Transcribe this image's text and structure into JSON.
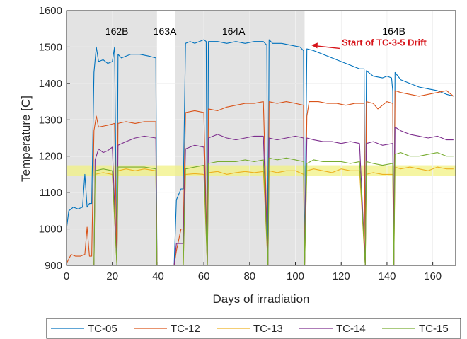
{
  "chart_data": {
    "type": "line",
    "xlabel": "Days of irradiation",
    "ylabel": "Temperature [C]",
    "xlim": [
      0,
      170
    ],
    "ylim": [
      900,
      1600
    ],
    "xticks": [
      0,
      20,
      40,
      60,
      80,
      100,
      120,
      140,
      160
    ],
    "yticks": [
      900,
      1000,
      1100,
      1200,
      1300,
      1400,
      1500,
      1600
    ],
    "grid": true,
    "legend_position": "bottom",
    "shaded_regions": [
      {
        "label": "162B",
        "x0": 0,
        "x1": 39.5,
        "label_x": 22
      },
      {
        "label": "163A",
        "x0": 39.5,
        "x1": 47.5,
        "label_x": 43,
        "shaded": false
      },
      {
        "label": "164A",
        "x0": 47.5,
        "x1": 104,
        "label_x": 73
      },
      {
        "label": "164B",
        "x0": 104,
        "x1": 170,
        "label_x": 143,
        "shaded": false
      }
    ],
    "highlight_band": {
      "y0": 1145,
      "y1": 1175,
      "color": "#f2f283"
    },
    "annotation": {
      "text": "Start of TC-3-5 Drift",
      "x": 106,
      "y": 1500,
      "color": "#d7141a"
    },
    "series": [
      {
        "name": "TC-05",
        "color": "#0072bd",
        "points": [
          [
            0,
            1000
          ],
          [
            1,
            1050
          ],
          [
            3,
            1060
          ],
          [
            5,
            1055
          ],
          [
            7,
            1060
          ],
          [
            8,
            1150
          ],
          [
            9,
            1060
          ],
          [
            10,
            1070
          ],
          [
            11,
            1070
          ],
          [
            12,
            1430
          ],
          [
            13,
            1500
          ],
          [
            14,
            1460
          ],
          [
            16,
            1465
          ],
          [
            18,
            1455
          ],
          [
            20,
            1460
          ],
          [
            21,
            1500
          ],
          [
            22,
            900
          ],
          [
            22.5,
            1480
          ],
          [
            24,
            1470
          ],
          [
            28,
            1480
          ],
          [
            32,
            1480
          ],
          [
            36,
            1475
          ],
          [
            39,
            1470
          ],
          [
            39.5,
            900
          ],
          [
            40,
            900
          ],
          [
            47,
            900
          ],
          [
            48,
            1080
          ],
          [
            50,
            1110
          ],
          [
            51,
            1110
          ],
          [
            52,
            1510
          ],
          [
            54,
            1515
          ],
          [
            56,
            1510
          ],
          [
            58,
            1515
          ],
          [
            60,
            1520
          ],
          [
            61,
            1515
          ],
          [
            61.5,
            900
          ],
          [
            62,
            1515
          ],
          [
            66,
            1515
          ],
          [
            70,
            1510
          ],
          [
            74,
            1515
          ],
          [
            78,
            1510
          ],
          [
            82,
            1515
          ],
          [
            86,
            1515
          ],
          [
            87.5,
            1505
          ],
          [
            88,
            900
          ],
          [
            88.5,
            1520
          ],
          [
            90,
            1510
          ],
          [
            94,
            1510
          ],
          [
            98,
            1505
          ],
          [
            102,
            1500
          ],
          [
            103.5,
            1490
          ],
          [
            104,
            900
          ],
          [
            105,
            1495
          ],
          [
            108,
            1490
          ],
          [
            112,
            1480
          ],
          [
            116,
            1470
          ],
          [
            120,
            1460
          ],
          [
            124,
            1450
          ],
          [
            128,
            1440
          ],
          [
            130,
            1440
          ],
          [
            130.5,
            900
          ],
          [
            131,
            1435
          ],
          [
            134,
            1420
          ],
          [
            138,
            1415
          ],
          [
            140,
            1420
          ],
          [
            142,
            1415
          ],
          [
            142.5,
            1380
          ],
          [
            143,
            900
          ],
          [
            143.5,
            1430
          ],
          [
            146,
            1410
          ],
          [
            150,
            1400
          ],
          [
            154,
            1390
          ],
          [
            158,
            1385
          ],
          [
            162,
            1380
          ],
          [
            166,
            1370
          ],
          [
            169,
            1365
          ]
        ]
      },
      {
        "name": "TC-12",
        "color": "#d95319",
        "points": [
          [
            0,
            905
          ],
          [
            2,
            930
          ],
          [
            4,
            925
          ],
          [
            6,
            925
          ],
          [
            8,
            930
          ],
          [
            9,
            1005
          ],
          [
            10,
            925
          ],
          [
            11,
            925
          ],
          [
            12,
            1270
          ],
          [
            13,
            1310
          ],
          [
            14,
            1280
          ],
          [
            18,
            1285
          ],
          [
            21,
            1290
          ],
          [
            22,
            900
          ],
          [
            22.5,
            1290
          ],
          [
            26,
            1295
          ],
          [
            30,
            1290
          ],
          [
            34,
            1295
          ],
          [
            39,
            1295
          ],
          [
            39.5,
            900
          ],
          [
            40,
            900
          ],
          [
            47,
            900
          ],
          [
            48,
            940
          ],
          [
            50,
            1000
          ],
          [
            51,
            1000
          ],
          [
            52,
            1320
          ],
          [
            56,
            1325
          ],
          [
            60,
            1320
          ],
          [
            61.5,
            900
          ],
          [
            62,
            1330
          ],
          [
            66,
            1325
          ],
          [
            70,
            1335
          ],
          [
            74,
            1340
          ],
          [
            78,
            1345
          ],
          [
            82,
            1345
          ],
          [
            86,
            1350
          ],
          [
            88,
            900
          ],
          [
            88.5,
            1350
          ],
          [
            92,
            1345
          ],
          [
            96,
            1350
          ],
          [
            100,
            1345
          ],
          [
            103.5,
            1340
          ],
          [
            104,
            900
          ],
          [
            105,
            1310
          ],
          [
            106,
            1350
          ],
          [
            110,
            1350
          ],
          [
            114,
            1345
          ],
          [
            118,
            1345
          ],
          [
            122,
            1340
          ],
          [
            126,
            1345
          ],
          [
            130,
            1345
          ],
          [
            130.5,
            900
          ],
          [
            131,
            1350
          ],
          [
            134,
            1345
          ],
          [
            136,
            1330
          ],
          [
            138,
            1340
          ],
          [
            140,
            1350
          ],
          [
            142.5,
            1345
          ],
          [
            143,
            900
          ],
          [
            143.5,
            1380
          ],
          [
            146,
            1375
          ],
          [
            150,
            1370
          ],
          [
            154,
            1365
          ],
          [
            158,
            1370
          ],
          [
            162,
            1375
          ],
          [
            166,
            1380
          ],
          [
            169,
            1365
          ]
        ]
      },
      {
        "name": "TC-13",
        "color": "#edb120",
        "points": [
          [
            12,
            900
          ],
          [
            12.5,
            1150
          ],
          [
            16,
            1155
          ],
          [
            20,
            1150
          ],
          [
            22,
            900
          ],
          [
            22.5,
            1160
          ],
          [
            26,
            1165
          ],
          [
            30,
            1160
          ],
          [
            34,
            1165
          ],
          [
            39,
            1160
          ],
          [
            39.5,
            900
          ],
          [
            51,
            900
          ],
          [
            52,
            1150
          ],
          [
            56,
            1152
          ],
          [
            60,
            1150
          ],
          [
            61.5,
            900
          ],
          [
            62,
            1155
          ],
          [
            66,
            1158
          ],
          [
            70,
            1150
          ],
          [
            74,
            1155
          ],
          [
            78,
            1158
          ],
          [
            82,
            1155
          ],
          [
            86,
            1158
          ],
          [
            88,
            900
          ],
          [
            88.5,
            1160
          ],
          [
            92,
            1155
          ],
          [
            96,
            1160
          ],
          [
            100,
            1160
          ],
          [
            103.5,
            1150
          ],
          [
            104,
            900
          ],
          [
            105,
            1160
          ],
          [
            108,
            1165
          ],
          [
            112,
            1160
          ],
          [
            116,
            1155
          ],
          [
            120,
            1165
          ],
          [
            124,
            1160
          ],
          [
            128,
            1160
          ],
          [
            130.5,
            900
          ],
          [
            131,
            1150
          ],
          [
            134,
            1155
          ],
          [
            138,
            1150
          ],
          [
            142.5,
            1150
          ],
          [
            143,
            900
          ],
          [
            143.5,
            1170
          ],
          [
            146,
            1165
          ],
          [
            150,
            1170
          ],
          [
            154,
            1165
          ],
          [
            158,
            1160
          ],
          [
            162,
            1170
          ],
          [
            166,
            1165
          ],
          [
            169,
            1165
          ]
        ]
      },
      {
        "name": "TC-14",
        "color": "#7e2f8e",
        "points": [
          [
            12,
            900
          ],
          [
            12.5,
            1190
          ],
          [
            14,
            1220
          ],
          [
            16,
            1210
          ],
          [
            18,
            1215
          ],
          [
            20,
            1225
          ],
          [
            22,
            900
          ],
          [
            22.5,
            1230
          ],
          [
            26,
            1240
          ],
          [
            30,
            1250
          ],
          [
            34,
            1255
          ],
          [
            39,
            1250
          ],
          [
            39.5,
            900
          ],
          [
            47,
            900
          ],
          [
            48,
            960
          ],
          [
            50,
            960
          ],
          [
            51,
            960
          ],
          [
            52,
            1220
          ],
          [
            56,
            1230
          ],
          [
            60,
            1225
          ],
          [
            61.5,
            900
          ],
          [
            62,
            1250
          ],
          [
            66,
            1260
          ],
          [
            70,
            1250
          ],
          [
            74,
            1245
          ],
          [
            78,
            1250
          ],
          [
            82,
            1255
          ],
          [
            86,
            1255
          ],
          [
            88,
            900
          ],
          [
            88.5,
            1250
          ],
          [
            92,
            1245
          ],
          [
            96,
            1250
          ],
          [
            100,
            1255
          ],
          [
            103.5,
            1250
          ],
          [
            104,
            900
          ],
          [
            105,
            1250
          ],
          [
            108,
            1245
          ],
          [
            112,
            1240
          ],
          [
            116,
            1240
          ],
          [
            120,
            1235
          ],
          [
            124,
            1240
          ],
          [
            128,
            1235
          ],
          [
            130.5,
            900
          ],
          [
            131,
            1235
          ],
          [
            134,
            1240
          ],
          [
            138,
            1230
          ],
          [
            142.5,
            1235
          ],
          [
            143,
            900
          ],
          [
            143.5,
            1280
          ],
          [
            146,
            1270
          ],
          [
            150,
            1260
          ],
          [
            154,
            1255
          ],
          [
            158,
            1250
          ],
          [
            162,
            1255
          ],
          [
            166,
            1245
          ],
          [
            169,
            1245
          ]
        ]
      },
      {
        "name": "TC-15",
        "color": "#77ac30",
        "points": [
          [
            12,
            900
          ],
          [
            12.5,
            1160
          ],
          [
            16,
            1165
          ],
          [
            20,
            1160
          ],
          [
            22,
            900
          ],
          [
            22.5,
            1170
          ],
          [
            26,
            1170
          ],
          [
            30,
            1170
          ],
          [
            34,
            1170
          ],
          [
            39,
            1165
          ],
          [
            39.5,
            900
          ],
          [
            51,
            900
          ],
          [
            52,
            1165
          ],
          [
            56,
            1170
          ],
          [
            60,
            1175
          ],
          [
            61.5,
            900
          ],
          [
            62,
            1180
          ],
          [
            66,
            1185
          ],
          [
            70,
            1185
          ],
          [
            74,
            1185
          ],
          [
            78,
            1190
          ],
          [
            82,
            1185
          ],
          [
            86,
            1190
          ],
          [
            88,
            900
          ],
          [
            88.5,
            1195
          ],
          [
            92,
            1190
          ],
          [
            96,
            1195
          ],
          [
            100,
            1190
          ],
          [
            103.5,
            1185
          ],
          [
            104,
            900
          ],
          [
            105,
            1180
          ],
          [
            108,
            1190
          ],
          [
            112,
            1185
          ],
          [
            116,
            1185
          ],
          [
            120,
            1185
          ],
          [
            124,
            1180
          ],
          [
            128,
            1185
          ],
          [
            130.5,
            900
          ],
          [
            131,
            1185
          ],
          [
            134,
            1180
          ],
          [
            138,
            1175
          ],
          [
            142.5,
            1180
          ],
          [
            143,
            900
          ],
          [
            143.5,
            1205
          ],
          [
            146,
            1210
          ],
          [
            150,
            1200
          ],
          [
            154,
            1200
          ],
          [
            158,
            1205
          ],
          [
            162,
            1210
          ],
          [
            166,
            1200
          ],
          [
            169,
            1200
          ]
        ]
      }
    ]
  }
}
